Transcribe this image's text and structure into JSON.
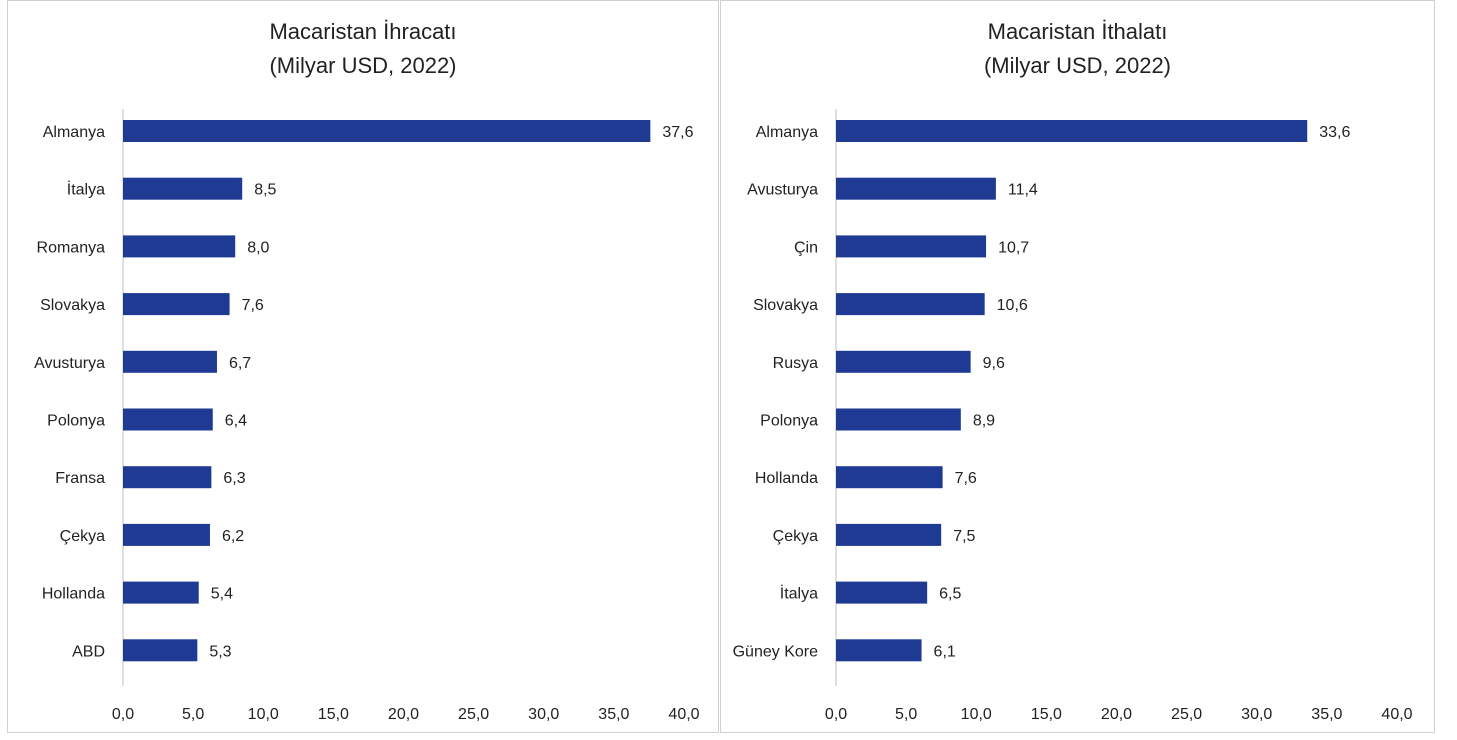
{
  "chart_data": [
    {
      "type": "bar",
      "orientation": "horizontal",
      "title": "Macaristan İhracatı",
      "subtitle": "(Milyar USD, 2022)",
      "categories": [
        "Almanya",
        "İtalya",
        "Romanya",
        "Slovakya",
        "Avusturya",
        "Polonya",
        "Fransa",
        "Çekya",
        "Hollanda",
        "ABD"
      ],
      "values": [
        37.6,
        8.5,
        8.0,
        7.6,
        6.7,
        6.4,
        6.3,
        6.2,
        5.4,
        5.3
      ],
      "value_labels": [
        "37,6",
        "8,5",
        "8,0",
        "7,6",
        "6,7",
        "6,4",
        "6,3",
        "6,2",
        "5,4",
        "5,3"
      ],
      "xlim": [
        0,
        40
      ],
      "x_ticks": [
        "0,0",
        "5,0",
        "10,0",
        "15,0",
        "20,0",
        "25,0",
        "30,0",
        "35,0",
        "40,0"
      ],
      "bar_color": "#1f3a93",
      "grid": false
    },
    {
      "type": "bar",
      "orientation": "horizontal",
      "title": "Macaristan İthalatı",
      "subtitle": "(Milyar USD, 2022)",
      "categories": [
        "Almanya",
        "Avusturya",
        "Çin",
        "Slovakya",
        "Rusya",
        "Polonya",
        "Hollanda",
        "Çekya",
        "İtalya",
        "Güney Kore"
      ],
      "values": [
        33.6,
        11.4,
        10.7,
        10.6,
        9.6,
        8.9,
        7.6,
        7.5,
        6.5,
        6.1
      ],
      "value_labels": [
        "33,6",
        "11,4",
        "10,7",
        "10,6",
        "9,6",
        "8,9",
        "7,6",
        "7,5",
        "6,5",
        "6,1"
      ],
      "xlim": [
        0,
        40
      ],
      "x_ticks": [
        "0,0",
        "5,0",
        "10,0",
        "15,0",
        "20,0",
        "25,0",
        "30,0",
        "35,0",
        "40,0"
      ],
      "bar_color": "#1f3a93",
      "grid": false
    }
  ]
}
